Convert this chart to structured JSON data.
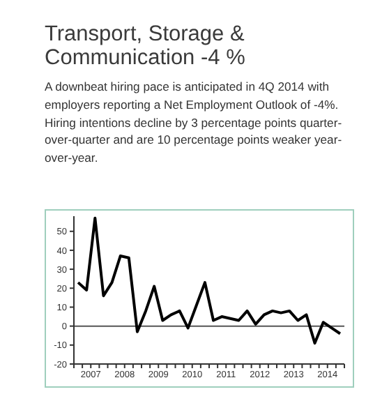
{
  "chart_data": {
    "type": "line",
    "title": "Transport, Storage & Communication -4 %",
    "subtitle": "A downbeat hiring pace is anticipated in 4Q 2014 with employers reporting a Net Employment Outlook of -4%. Hiring intentions decline by 3 percentage points quarter-over-quarter and are 10 percentage points weaker year-over-year.",
    "x": [
      2007.125,
      2007.375,
      2007.625,
      2007.875,
      2008.125,
      2008.375,
      2008.625,
      2008.875,
      2009.125,
      2009.375,
      2009.625,
      2009.875,
      2010.125,
      2010.375,
      2010.625,
      2010.875,
      2011.125,
      2011.375,
      2011.625,
      2011.875,
      2012.125,
      2012.375,
      2012.625,
      2012.875,
      2013.125,
      2013.375,
      2013.625,
      2013.875,
      2014.125,
      2014.375,
      2014.625,
      2014.875
    ],
    "series": [
      {
        "color": "#000000",
        "values": [
          23,
          19,
          57,
          16,
          23,
          37,
          36,
          -3,
          8,
          21,
          3,
          6,
          8,
          -1,
          11,
          23,
          3,
          5,
          4,
          3,
          8,
          1,
          6,
          8,
          7,
          8,
          3,
          6,
          -9,
          2,
          -1,
          -4
        ]
      }
    ],
    "xlim": [
      2007,
      2015
    ],
    "xticks": [
      {
        "value": 2007,
        "label": null
      },
      {
        "value": 2007.25,
        "label": null
      },
      {
        "value": 2007.5,
        "label": "2007"
      },
      {
        "value": 2007.75,
        "label": null
      },
      {
        "value": 2008,
        "label": null
      },
      {
        "value": 2008.25,
        "label": null
      },
      {
        "value": 2008.5,
        "label": "2008"
      },
      {
        "value": 2008.75,
        "label": null
      },
      {
        "value": 2009,
        "label": null
      },
      {
        "value": 2009.25,
        "label": null
      },
      {
        "value": 2009.5,
        "label": "2009"
      },
      {
        "value": 2009.75,
        "label": null
      },
      {
        "value": 2010,
        "label": null
      },
      {
        "value": 2010.25,
        "label": null
      },
      {
        "value": 2010.5,
        "label": "2010"
      },
      {
        "value": 2010.75,
        "label": null
      },
      {
        "value": 2011,
        "label": null
      },
      {
        "value": 2011.25,
        "label": null
      },
      {
        "value": 2011.5,
        "label": "2011"
      },
      {
        "value": 2011.75,
        "label": null
      },
      {
        "value": 2012,
        "label": null
      },
      {
        "value": 2012.25,
        "label": null
      },
      {
        "value": 2012.5,
        "label": "2012"
      },
      {
        "value": 2012.75,
        "label": null
      },
      {
        "value": 2013,
        "label": null
      },
      {
        "value": 2013.25,
        "label": null
      },
      {
        "value": 2013.5,
        "label": "2013"
      },
      {
        "value": 2013.75,
        "label": null
      },
      {
        "value": 2014,
        "label": null
      },
      {
        "value": 2014.25,
        "label": null
      },
      {
        "value": 2014.5,
        "label": "2014"
      },
      {
        "value": 2014.75,
        "label": null
      },
      {
        "value": 2015,
        "label": null
      }
    ],
    "ylim": [
      -20,
      58
    ],
    "yticks": [
      -20,
      -10,
      0,
      10,
      20,
      30,
      40,
      50
    ],
    "ref_lines": [
      {
        "axis": "y",
        "value": 0,
        "color": "#555555"
      }
    ],
    "grid": false,
    "legend": false,
    "marker": "none",
    "line_style": "solid"
  }
}
